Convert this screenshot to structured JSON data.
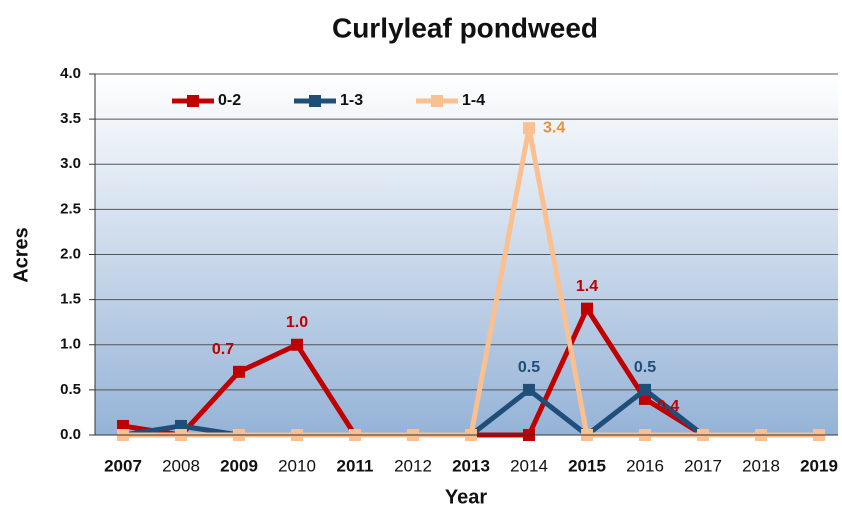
{
  "chart_data": {
    "type": "line",
    "title": "Curlyleaf pondweed",
    "y_label": "Acres",
    "x_label": "Year",
    "categories": [
      "2007",
      "2008",
      "2009",
      "2010",
      "2011",
      "2012",
      "2013",
      "2014",
      "2015",
      "2016",
      "2017",
      "2018",
      "2019"
    ],
    "category_bold": [
      true,
      false,
      true,
      false,
      true,
      false,
      true,
      false,
      true,
      false,
      false,
      false,
      true
    ],
    "series": [
      {
        "name": "0-2",
        "color": "#c00000",
        "values": [
          0.1,
          0,
          0.7,
          1.0,
          0,
          0,
          0,
          0,
          1.4,
          0.4,
          0,
          0,
          0
        ],
        "value_labels": [
          null,
          null,
          "0.7",
          "1.0",
          null,
          null,
          null,
          null,
          "1.4",
          "0.4",
          null,
          null,
          null
        ]
      },
      {
        "name": "1-3",
        "color": "#1f4e79",
        "values": [
          0,
          0.1,
          0,
          0,
          0,
          0,
          0,
          0.5,
          0,
          0.5,
          0,
          0,
          0
        ],
        "value_labels": [
          null,
          null,
          null,
          null,
          null,
          null,
          null,
          "0.5",
          null,
          "0.5",
          null,
          null,
          null
        ]
      },
      {
        "name": "1-4",
        "color": "#fac090",
        "values": [
          0,
          0,
          0,
          0,
          0,
          0,
          0,
          3.4,
          0,
          0,
          0,
          0,
          0
        ],
        "value_labels": [
          null,
          null,
          null,
          null,
          null,
          null,
          null,
          "3.4",
          null,
          null,
          null,
          null,
          null
        ]
      }
    ],
    "ylim": [
      0,
      4
    ],
    "yticks": [
      {
        "value": 0,
        "label": "0.0"
      },
      {
        "value": 0.5,
        "label": "0.5"
      },
      {
        "value": 1,
        "label": "1.0"
      },
      {
        "value": 1.5,
        "label": "1.5"
      },
      {
        "value": 2,
        "label": "2.0"
      },
      {
        "value": 2.5,
        "label": "2.5"
      },
      {
        "value": 3,
        "label": "3.0"
      },
      {
        "value": 3.5,
        "label": "3.5"
      },
      {
        "value": 4,
        "label": "4.0"
      }
    ],
    "grid": true,
    "legend": "top-left"
  }
}
